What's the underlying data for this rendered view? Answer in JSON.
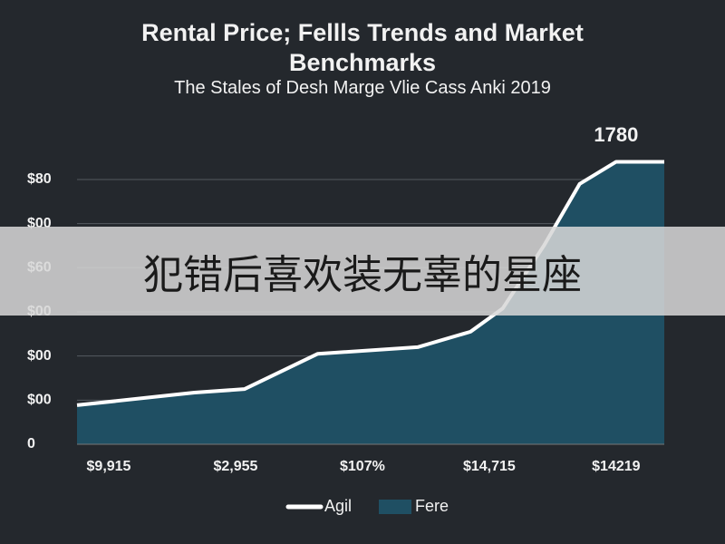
{
  "chart_data": {
    "type": "area",
    "title": "Rental Price; Fellls Trends and Market Benchmarks",
    "subtitle": "The Stales of Desh Marge Vlie Cass Anki 2019",
    "annotation": {
      "text": "1780",
      "x": 91.8,
      "y": 128
    },
    "x": [
      0,
      20,
      28.5,
      41,
      58,
      67,
      72.5,
      79.5,
      85.6,
      91.8,
      100
    ],
    "series": [
      {
        "name": "Agil",
        "color": "#ffffff",
        "kind": "line",
        "values": [
          17.7,
          23.4,
          25,
          41,
          44,
          51,
          61.6,
          90,
          118,
          128,
          128
        ]
      },
      {
        "name": "Fere",
        "color": "#1f4f63",
        "kind": "area",
        "values": [
          17.7,
          23.4,
          25,
          41,
          44,
          51,
          61.6,
          90,
          118,
          128,
          128
        ]
      }
    ],
    "xlim": [
      0,
      100
    ],
    "xticks": [
      {
        "value": 5.4,
        "label": "$9,915"
      },
      {
        "value": 27,
        "label": "$2,955"
      },
      {
        "value": 48.6,
        "label": "$107%"
      },
      {
        "value": 70.2,
        "label": "$14,715"
      },
      {
        "value": 91.8,
        "label": "$14219"
      }
    ],
    "ylim": [
      0,
      130
    ],
    "yticks": [
      0,
      {
        "value": 20,
        "label": "$00"
      },
      {
        "value": 40,
        "label": "$00"
      },
      {
        "value": 60,
        "label": "$00"
      },
      {
        "value": 80,
        "label": "$60"
      },
      {
        "value": 100,
        "label": "$00"
      },
      {
        "value": 120,
        "label": "$80"
      }
    ],
    "grid": true,
    "legend": "bottom"
  },
  "overlay": {
    "text": "犯错后喜欢装无辜的星座"
  }
}
